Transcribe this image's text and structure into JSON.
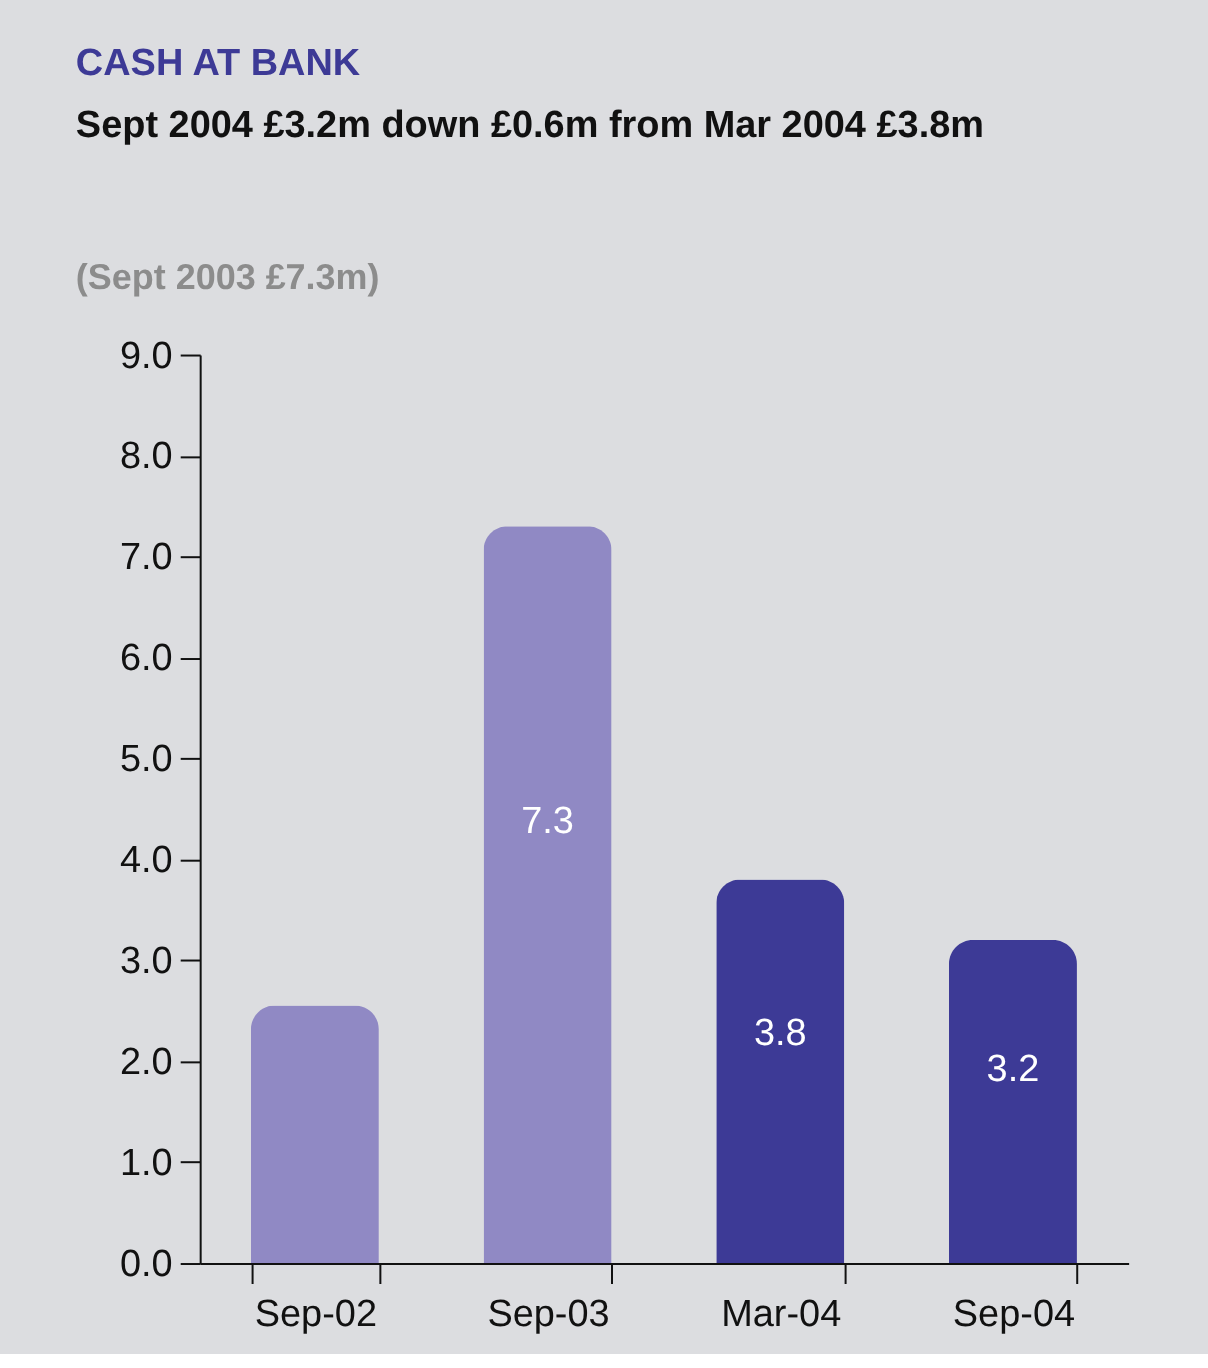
{
  "chart_data": {
    "type": "bar",
    "title": "CASH AT BANK",
    "subtitle": "Sept 2004 £3.2m down £0.6m from Mar 2004 £3.8m",
    "annotations": [
      "(Sept 2003 £7.3m)"
    ],
    "categories": [
      "Sep-02",
      "Sep-03",
      "Mar-04",
      "Sep-04"
    ],
    "values": [
      2.55,
      7.3,
      3.8,
      3.2
    ],
    "colors": [
      "#9089c4",
      "#9089c4",
      "#3d3a96",
      "#3d3a96"
    ],
    "value_labels": [
      null,
      "7.3",
      "3.8",
      "3.2"
    ],
    "ylim": [
      0,
      9
    ],
    "yticks": [
      {
        "value": 0,
        "label": "0.0"
      },
      {
        "value": 1,
        "label": "1.0"
      },
      {
        "value": 2,
        "label": "2.0"
      },
      {
        "value": 3,
        "label": "3.0"
      },
      {
        "value": 4,
        "label": "4.0"
      },
      {
        "value": 5,
        "label": "5.0"
      },
      {
        "value": 6,
        "label": "6.0"
      },
      {
        "value": 7,
        "label": "7.0"
      },
      {
        "value": 8,
        "label": "8.0"
      },
      {
        "value": 9,
        "label": "9.0"
      }
    ],
    "tick_labels": true
  }
}
